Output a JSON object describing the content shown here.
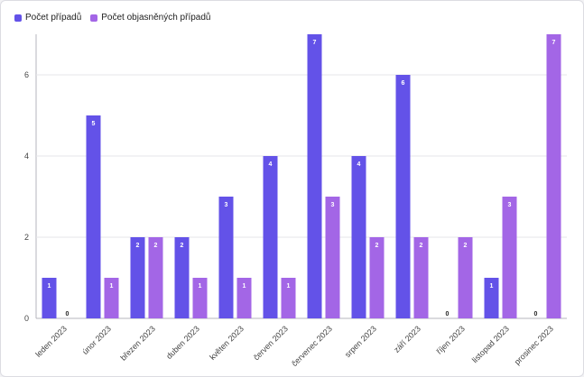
{
  "colors": {
    "series1": "#6352e8",
    "series2": "#a366e6",
    "grid": "#e6e6ea",
    "axis": "#b5b5bd"
  },
  "chart_data": {
    "type": "bar",
    "categories": [
      "leden 2023",
      "únor 2023",
      "březen 2023",
      "duben 2023",
      "květen 2023",
      "červen 2023",
      "červenec 2023",
      "srpen 2023",
      "září 2023",
      "říjen 2023",
      "listopad 2023",
      "prosinec 2023"
    ],
    "series": [
      {
        "name": "Počet případů",
        "values": [
          1,
          5,
          2,
          2,
          3,
          4,
          7,
          4,
          6,
          0,
          1,
          0
        ]
      },
      {
        "name": "Počet objasněných případů",
        "values": [
          0,
          1,
          2,
          1,
          1,
          1,
          3,
          2,
          2,
          2,
          3,
          7
        ]
      }
    ],
    "yticks": [
      0,
      2,
      4,
      6
    ],
    "ylim": [
      0,
      7
    ],
    "grid": true,
    "legend": "top-left",
    "data_labels": true
  }
}
